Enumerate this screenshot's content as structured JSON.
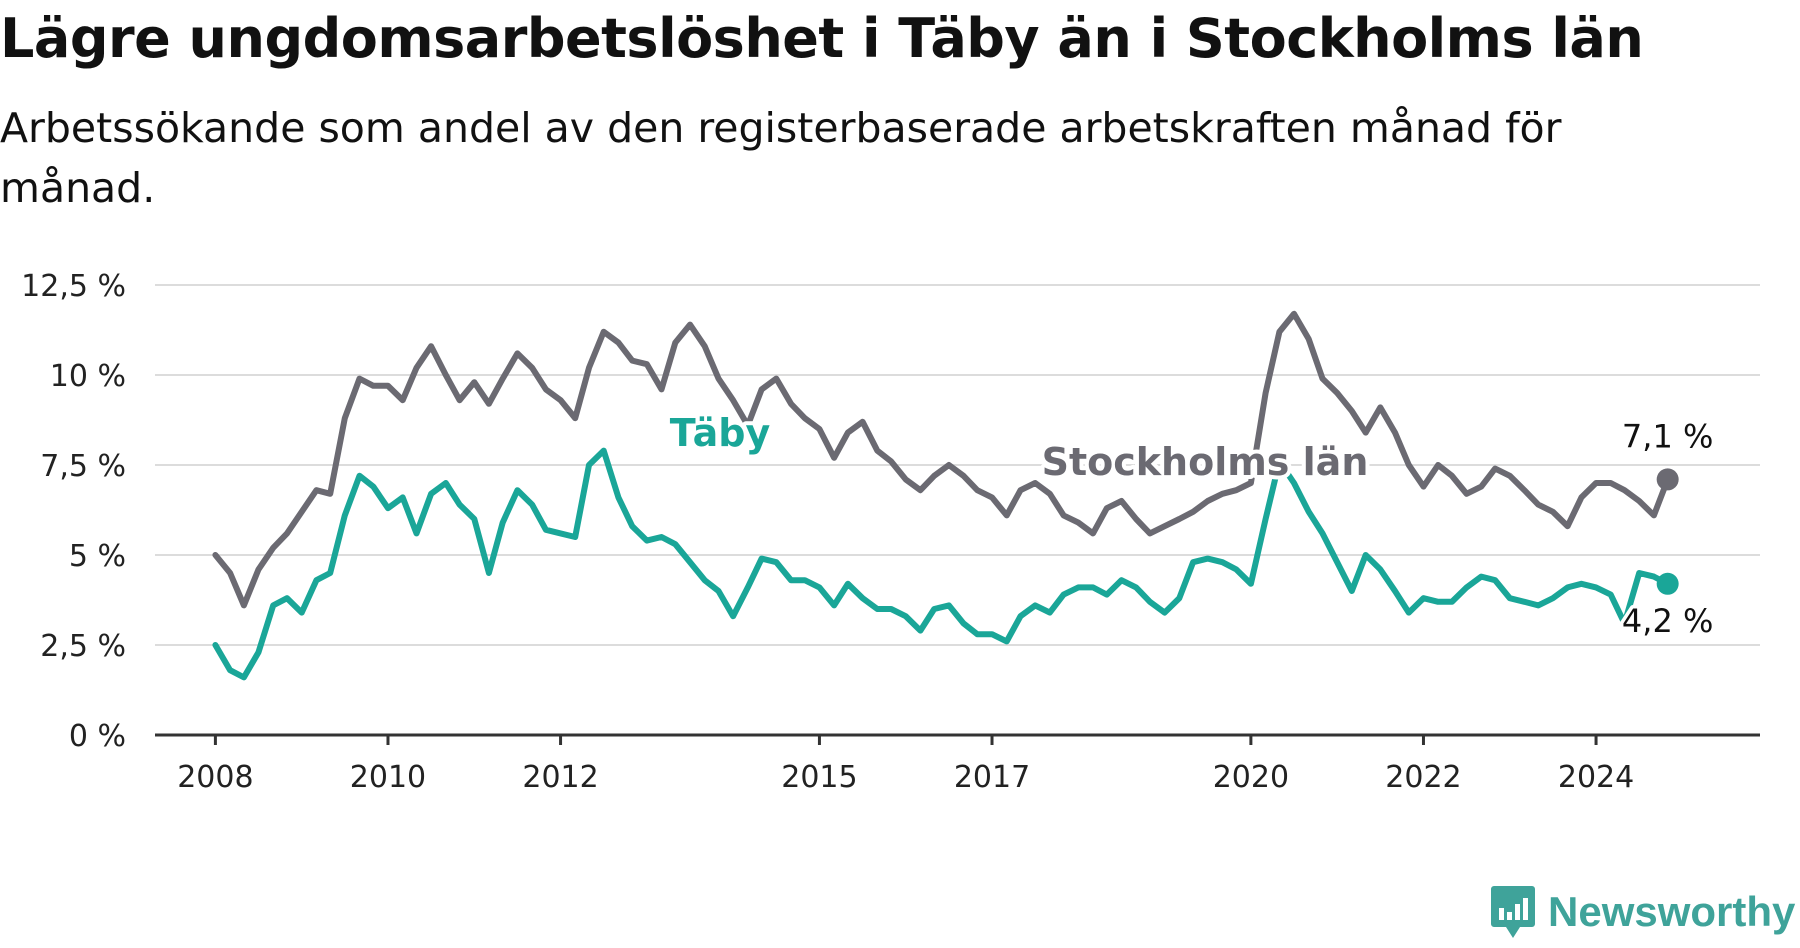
{
  "title": "Lägre ungdomsarbetslöshet i Täby än i Stockholms län",
  "subtitle": "Arbetssökande som andel av den registerbaserade arbetskraften månad för månad.",
  "brand": {
    "name": "Newsworthy",
    "icon": "newsworthy-logo-icon",
    "color": "#3fa39a"
  },
  "chart_data": {
    "type": "line",
    "title": "Lägre ungdomsarbetslöshet i Täby än i Stockholms län",
    "subtitle": "Arbetssökande som andel av den registerbaserade arbetskraften månad för månad.",
    "xlabel": "",
    "ylabel": "",
    "ylim": [
      0,
      12.5
    ],
    "xlim": [
      2007.3,
      2025.9
    ],
    "grid": true,
    "legend": "inline labels",
    "y_ticks": [
      0,
      2.5,
      5,
      7.5,
      10,
      12.5
    ],
    "y_tick_labels": [
      "0 %",
      "2,5 %",
      "5 %",
      "7,5 %",
      "10 %",
      "12,5 %"
    ],
    "x_ticks": [
      2008,
      2010,
      2012,
      2015,
      2017,
      2020,
      2022,
      2024
    ],
    "x_tick_labels": [
      "2008",
      "2010",
      "2012",
      "2015",
      "2017",
      "2020",
      "2022",
      "2024"
    ],
    "series": [
      {
        "name": "Stockholms län",
        "color": "#6b6a72",
        "end_label": "7,1 %",
        "x": [
          2008.0,
          2008.17,
          2008.33,
          2008.5,
          2008.67,
          2008.83,
          2009.0,
          2009.17,
          2009.33,
          2009.5,
          2009.67,
          2009.83,
          2010.0,
          2010.17,
          2010.33,
          2010.5,
          2010.67,
          2010.83,
          2011.0,
          2011.17,
          2011.33,
          2011.5,
          2011.67,
          2011.83,
          2012.0,
          2012.17,
          2012.33,
          2012.5,
          2012.67,
          2012.83,
          2013.0,
          2013.17,
          2013.33,
          2013.5,
          2013.67,
          2013.83,
          2014.0,
          2014.17,
          2014.33,
          2014.5,
          2014.67,
          2014.83,
          2015.0,
          2015.17,
          2015.33,
          2015.5,
          2015.67,
          2015.83,
          2016.0,
          2016.17,
          2016.33,
          2016.5,
          2016.67,
          2016.83,
          2017.0,
          2017.17,
          2017.33,
          2017.5,
          2017.67,
          2017.83,
          2018.0,
          2018.17,
          2018.33,
          2018.5,
          2018.67,
          2018.83,
          2019.0,
          2019.17,
          2019.33,
          2019.5,
          2019.67,
          2019.83,
          2020.0,
          2020.17,
          2020.33,
          2020.5,
          2020.67,
          2020.83,
          2021.0,
          2021.17,
          2021.33,
          2021.5,
          2021.67,
          2021.83,
          2022.0,
          2022.17,
          2022.33,
          2022.5,
          2022.67,
          2022.83,
          2023.0,
          2023.17,
          2023.33,
          2023.5,
          2023.67,
          2023.83,
          2024.0,
          2024.17,
          2024.33,
          2024.5,
          2024.67,
          2024.83
        ],
        "y": [
          5.0,
          4.5,
          3.6,
          4.6,
          5.2,
          5.6,
          6.2,
          6.8,
          6.7,
          8.8,
          9.9,
          9.7,
          9.7,
          9.3,
          10.2,
          10.8,
          10.0,
          9.3,
          9.8,
          9.2,
          9.9,
          10.6,
          10.2,
          9.6,
          9.3,
          8.8,
          10.2,
          11.2,
          10.9,
          10.4,
          10.3,
          9.6,
          10.9,
          11.4,
          10.8,
          9.9,
          9.3,
          8.6,
          9.6,
          9.9,
          9.2,
          8.8,
          8.5,
          7.7,
          8.4,
          8.7,
          7.9,
          7.6,
          7.1,
          6.8,
          7.2,
          7.5,
          7.2,
          6.8,
          6.6,
          6.1,
          6.8,
          7.0,
          6.7,
          6.1,
          5.9,
          5.6,
          6.3,
          6.5,
          6.0,
          5.6,
          5.8,
          6.0,
          6.2,
          6.5,
          6.7,
          6.8,
          7.0,
          9.5,
          11.2,
          11.7,
          11.0,
          9.9,
          9.5,
          9.0,
          8.4,
          9.1,
          8.4,
          7.5,
          6.9,
          7.5,
          7.2,
          6.7,
          6.9,
          7.4,
          7.2,
          6.8,
          6.4,
          6.2,
          5.8,
          6.6,
          7.0,
          7.0,
          6.8,
          6.5,
          6.1,
          7.1
        ]
      },
      {
        "name": "Täby",
        "color": "#1aa698",
        "end_label": "4,2 %",
        "x": [
          2008.0,
          2008.17,
          2008.33,
          2008.5,
          2008.67,
          2008.83,
          2009.0,
          2009.17,
          2009.33,
          2009.5,
          2009.67,
          2009.83,
          2010.0,
          2010.17,
          2010.33,
          2010.5,
          2010.67,
          2010.83,
          2011.0,
          2011.17,
          2011.33,
          2011.5,
          2011.67,
          2011.83,
          2012.0,
          2012.17,
          2012.33,
          2012.5,
          2012.67,
          2012.83,
          2013.0,
          2013.17,
          2013.33,
          2013.5,
          2013.67,
          2013.83,
          2014.0,
          2014.17,
          2014.33,
          2014.5,
          2014.67,
          2014.83,
          2015.0,
          2015.17,
          2015.33,
          2015.5,
          2015.67,
          2015.83,
          2016.0,
          2016.17,
          2016.33,
          2016.5,
          2016.67,
          2016.83,
          2017.0,
          2017.17,
          2017.33,
          2017.5,
          2017.67,
          2017.83,
          2018.0,
          2018.17,
          2018.33,
          2018.5,
          2018.67,
          2018.83,
          2019.0,
          2019.17,
          2019.33,
          2019.5,
          2019.67,
          2019.83,
          2020.0,
          2020.17,
          2020.33,
          2020.5,
          2020.67,
          2020.83,
          2021.0,
          2021.17,
          2021.33,
          2021.5,
          2021.67,
          2021.83,
          2022.0,
          2022.17,
          2022.33,
          2022.5,
          2022.67,
          2022.83,
          2023.0,
          2023.17,
          2023.33,
          2023.5,
          2023.67,
          2023.83,
          2024.0,
          2024.17,
          2024.33,
          2024.5,
          2024.67,
          2024.83
        ],
        "y": [
          2.5,
          1.8,
          1.6,
          2.3,
          3.6,
          3.8,
          3.4,
          4.3,
          4.5,
          6.1,
          7.2,
          6.9,
          6.3,
          6.6,
          5.6,
          6.7,
          7.0,
          6.4,
          6.0,
          4.5,
          5.9,
          6.8,
          6.4,
          5.7,
          5.6,
          5.5,
          7.5,
          7.9,
          6.6,
          5.8,
          5.4,
          5.5,
          5.3,
          4.8,
          4.3,
          4.0,
          3.3,
          4.1,
          4.9,
          4.8,
          4.3,
          4.3,
          4.1,
          3.6,
          4.2,
          3.8,
          3.5,
          3.5,
          3.3,
          2.9,
          3.5,
          3.6,
          3.1,
          2.8,
          2.8,
          2.6,
          3.3,
          3.6,
          3.4,
          3.9,
          4.1,
          4.1,
          3.9,
          4.3,
          4.1,
          3.7,
          3.4,
          3.8,
          4.8,
          4.9,
          4.8,
          4.6,
          4.2,
          6.0,
          7.6,
          7.0,
          6.2,
          5.6,
          4.8,
          4.0,
          5.0,
          4.6,
          4.0,
          3.4,
          3.8,
          3.7,
          3.7,
          4.1,
          4.4,
          4.3,
          3.8,
          3.7,
          3.6,
          3.8,
          4.1,
          4.2,
          4.1,
          3.9,
          3.1,
          4.5,
          4.4,
          4.2
        ]
      }
    ]
  }
}
